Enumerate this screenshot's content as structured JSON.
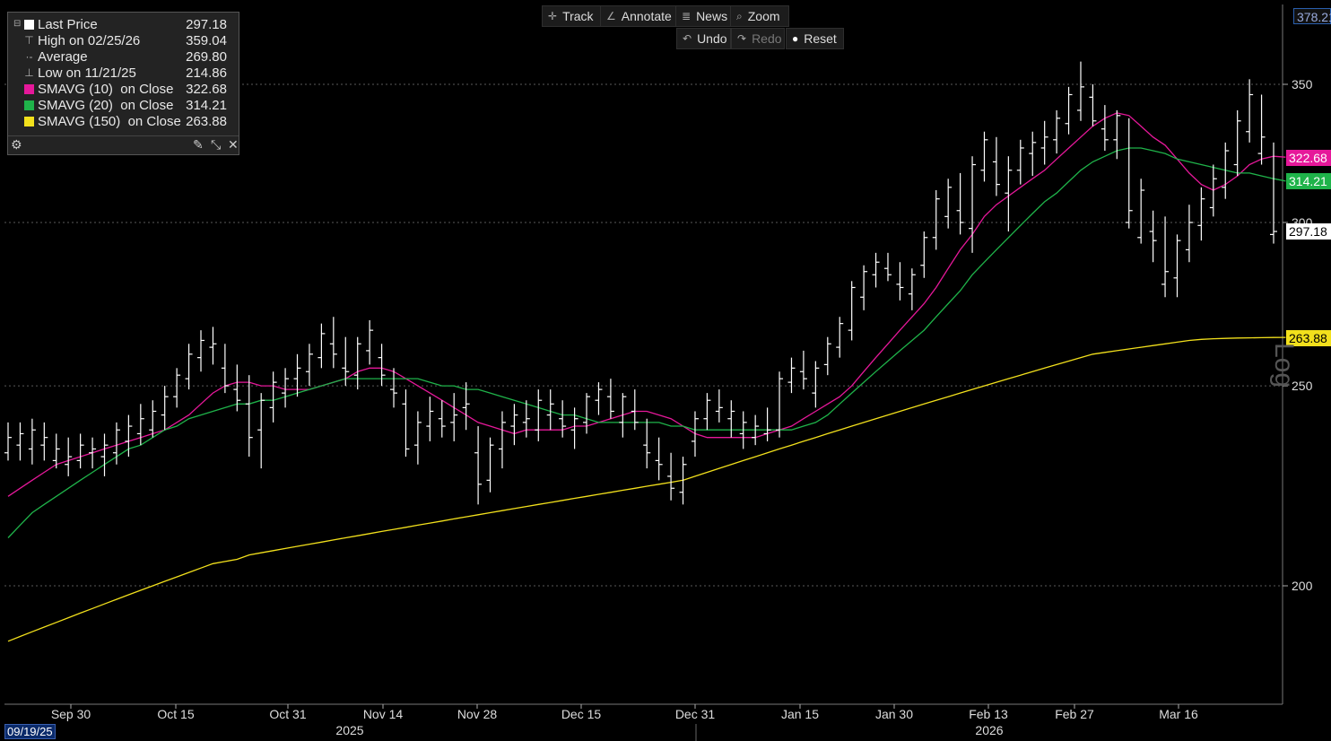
{
  "legend": {
    "rows": [
      {
        "label": "Last Price",
        "value": "297.18",
        "color": "#ffffff",
        "glyph": ""
      },
      {
        "label": "High on 02/25/26",
        "value": "359.04",
        "color": "",
        "glyph": "⊤"
      },
      {
        "label": "Average",
        "value": "269.80",
        "color": "",
        "glyph": "·-"
      },
      {
        "label": "Low on 11/21/25",
        "value": "214.86",
        "color": "",
        "glyph": "⊥"
      },
      {
        "label": "SMAVG (10)  on Close",
        "value": "322.68",
        "color": "#e6189a",
        "glyph": ""
      },
      {
        "label": "SMAVG (20)  on Close",
        "value": "314.21",
        "color": "#1fb34a",
        "glyph": ""
      },
      {
        "label": "SMAVG (150)  on Close",
        "value": "263.88",
        "color": "#f2e01c",
        "glyph": ""
      }
    ]
  },
  "toolbar": {
    "track": "Track",
    "annotate": "Annotate",
    "news": "News",
    "zoom": "Zoom",
    "undo": "Undo",
    "redo": "Redo",
    "reset": "Reset"
  },
  "axis_tags": {
    "top": "378.21",
    "sma10": "322.68",
    "sma20": "314.21",
    "last": "297.18",
    "sma150": "263.88"
  },
  "start_date": "09/19/25",
  "watermark": "Log",
  "chart_data": {
    "type": "line",
    "yscale": "log",
    "ylim": [
      180,
      380
    ],
    "yticks": [
      200,
      250,
      300,
      350
    ],
    "xlabels": [
      "Sep 30",
      "Oct 15",
      "Oct 31",
      "Nov 14",
      "Nov 28",
      "Dec 15",
      "Dec 31",
      "Jan 15",
      "Jan 30",
      "Feb 13",
      "Feb 27",
      "Mar 16"
    ],
    "year_labels": [
      "2025",
      "2026"
    ],
    "price_bars": [
      [
        232,
        240,
        230,
        236
      ],
      [
        234,
        240,
        230,
        237
      ],
      [
        233,
        241,
        229,
        238
      ],
      [
        234,
        240,
        230,
        236
      ],
      [
        230,
        237,
        228,
        233
      ],
      [
        229,
        236,
        226,
        231
      ],
      [
        230,
        237,
        228,
        234
      ],
      [
        232,
        236,
        228,
        233
      ],
      [
        231,
        237,
        226,
        234
      ],
      [
        232,
        240,
        229,
        238
      ],
      [
        235,
        242,
        231,
        239
      ],
      [
        237,
        245,
        234,
        241
      ],
      [
        238,
        246,
        236,
        243
      ],
      [
        242,
        250,
        238,
        247
      ],
      [
        247,
        255,
        244,
        253
      ],
      [
        252,
        262,
        249,
        259
      ],
      [
        258,
        266,
        254,
        263
      ],
      [
        261,
        267,
        256,
        262
      ],
      [
        255,
        262,
        248,
        250
      ],
      [
        249,
        256,
        243,
        246
      ],
      [
        245,
        253,
        231,
        236
      ],
      [
        238,
        248,
        228,
        246
      ],
      [
        244,
        254,
        240,
        251
      ],
      [
        248,
        255,
        244,
        252
      ],
      [
        252,
        259,
        247,
        255
      ],
      [
        254,
        262,
        250,
        259
      ],
      [
        258,
        268,
        255,
        265
      ],
      [
        262,
        270,
        255,
        259
      ],
      [
        255,
        264,
        250,
        254
      ],
      [
        253,
        264,
        249,
        262
      ],
      [
        260,
        269,
        256,
        266
      ],
      [
        258,
        262,
        250,
        253
      ],
      [
        249,
        255,
        244,
        248
      ],
      [
        245,
        249,
        231,
        233
      ],
      [
        234,
        243,
        229,
        240
      ],
      [
        239,
        247,
        235,
        243
      ],
      [
        241,
        246,
        236,
        239
      ],
      [
        240,
        248,
        235,
        242
      ],
      [
        244,
        251,
        238,
        245
      ],
      [
        232,
        239,
        219,
        224
      ],
      [
        225,
        236,
        222,
        234
      ],
      [
        233,
        243,
        228,
        240
      ],
      [
        239,
        245,
        234,
        242
      ],
      [
        240,
        246,
        236,
        241
      ],
      [
        238,
        249,
        235,
        246
      ],
      [
        242,
        249,
        238,
        245
      ],
      [
        241,
        246,
        236,
        239
      ],
      [
        238,
        244,
        233,
        241
      ],
      [
        240,
        248,
        237,
        247
      ],
      [
        246,
        251,
        242,
        249
      ],
      [
        247,
        252,
        241,
        243
      ],
      [
        240,
        248,
        236,
        247
      ],
      [
        243,
        249,
        238,
        240
      ],
      [
        234,
        241,
        228,
        232
      ],
      [
        230,
        236,
        225,
        229
      ],
      [
        226,
        232,
        220,
        223
      ],
      [
        222,
        231,
        219,
        229
      ],
      [
        235,
        243,
        231,
        241
      ],
      [
        241,
        248,
        238,
        246
      ],
      [
        243,
        249,
        240,
        244
      ],
      [
        241,
        246,
        236,
        243
      ],
      [
        237,
        243,
        233,
        240
      ],
      [
        236,
        242,
        234,
        239
      ],
      [
        237,
        244,
        235,
        238
      ],
      [
        238,
        254,
        236,
        252
      ],
      [
        251,
        258,
        248,
        255
      ],
      [
        254,
        260,
        249,
        252
      ],
      [
        248,
        257,
        244,
        255
      ],
      [
        256,
        264,
        253,
        262
      ],
      [
        261,
        270,
        258,
        268
      ],
      [
        266,
        281,
        263,
        279
      ],
      [
        276,
        286,
        272,
        284
      ],
      [
        283,
        290,
        279,
        287
      ],
      [
        285,
        290,
        281,
        283
      ],
      [
        280,
        287,
        275,
        279
      ],
      [
        277,
        285,
        272,
        283
      ],
      [
        286,
        297,
        282,
        295
      ],
      [
        295,
        311,
        291,
        308
      ],
      [
        302,
        315,
        298,
        312
      ],
      [
        304,
        317,
        296,
        300
      ],
      [
        298,
        323,
        290,
        320
      ],
      [
        318,
        332,
        314,
        329
      ],
      [
        321,
        330,
        309,
        313
      ],
      [
        310,
        323,
        297,
        318
      ],
      [
        318,
        329,
        313,
        326
      ],
      [
        324,
        332,
        316,
        328
      ],
      [
        326,
        336,
        320,
        330
      ],
      [
        329,
        340,
        324,
        337
      ],
      [
        335,
        349,
        331,
        346
      ],
      [
        340,
        359,
        336,
        349
      ],
      [
        345,
        350,
        334,
        336
      ],
      [
        333,
        342,
        325,
        329
      ],
      [
        329,
        340,
        322,
        338
      ],
      [
        300,
        337,
        298,
        304
      ],
      [
        295,
        315,
        293,
        311
      ],
      [
        297,
        304,
        287,
        294
      ],
      [
        280,
        302,
        276,
        284
      ],
      [
        282,
        296,
        276,
        294
      ],
      [
        291,
        306,
        287,
        300
      ],
      [
        299,
        312,
        294,
        308
      ],
      [
        305,
        320,
        302,
        315
      ],
      [
        312,
        328,
        308,
        325
      ],
      [
        320,
        340,
        316,
        336
      ],
      [
        332,
        352,
        328,
        346
      ],
      [
        324,
        346,
        320,
        330
      ],
      [
        296,
        328,
        293,
        297
      ]
    ],
    "series": [
      {
        "name": "SMAVG (10)  on Close",
        "color": "#e6189a",
        "values": [
          221,
          223,
          225,
          227,
          229,
          230,
          231,
          232,
          233,
          234,
          235,
          236,
          237,
          238,
          240,
          242,
          245,
          248,
          250,
          251,
          251,
          250,
          250,
          249,
          249,
          249,
          250,
          251,
          252,
          254,
          255,
          255,
          254,
          252,
          250,
          248,
          246,
          244,
          242,
          240,
          239,
          238,
          237,
          238,
          238,
          238,
          238,
          239,
          239,
          240,
          241,
          242,
          243,
          243,
          242,
          241,
          239,
          237,
          236,
          236,
          236,
          236,
          236,
          237,
          238,
          239,
          241,
          243,
          245,
          247,
          250,
          254,
          258,
          262,
          266,
          270,
          274,
          279,
          285,
          291,
          296,
          302,
          306,
          309,
          312,
          315,
          318,
          322,
          326,
          330,
          334,
          337,
          339,
          338,
          334,
          330,
          327,
          322,
          317,
          313,
          311,
          313,
          316,
          320,
          322,
          323,
          322.68
        ]
      },
      {
        "name": "SMAVG (20)  on Close",
        "color": "#1fb34a",
        "values": [
          211,
          214,
          217,
          219,
          221,
          223,
          225,
          227,
          229,
          231,
          233,
          234,
          236,
          238,
          239,
          241,
          242,
          243,
          244,
          245,
          245,
          246,
          246,
          247,
          248,
          249,
          250,
          251,
          252,
          252,
          252,
          252,
          252,
          252,
          252,
          251,
          250,
          250,
          249,
          249,
          248,
          247,
          246,
          245,
          244,
          243,
          242,
          242,
          241,
          240,
          240,
          240,
          240,
          240,
          240,
          239,
          239,
          238,
          238,
          238,
          238,
          238,
          238,
          238,
          238,
          238,
          239,
          240,
          242,
          245,
          248,
          251,
          254,
          257,
          260,
          263,
          266,
          270,
          274,
          278,
          283,
          287,
          291,
          295,
          299,
          303,
          307,
          310,
          314,
          318,
          321,
          323,
          325,
          326,
          326,
          325,
          324,
          322,
          321,
          320,
          319,
          318,
          317,
          317,
          316,
          315,
          314.21
        ]
      },
      {
        "name": "SMAVG (150)  on Close",
        "color": "#f2e01c",
        "values": [
          188,
          189,
          190,
          191,
          192,
          193,
          194,
          195,
          196,
          197,
          198,
          199,
          200,
          201,
          202,
          203,
          204,
          205,
          205.5,
          206,
          207,
          207.5,
          208,
          208.5,
          209,
          209.5,
          210,
          210.5,
          211,
          211.5,
          212,
          212.5,
          213,
          213.5,
          214,
          214.5,
          215,
          215.5,
          216,
          216.5,
          217,
          217.5,
          218,
          218.5,
          219,
          219.5,
          220,
          220.5,
          221,
          221.5,
          222,
          222.5,
          223,
          223.5,
          224,
          224.5,
          225,
          226,
          227,
          228,
          229,
          230,
          231,
          232,
          233,
          234,
          235,
          236,
          237,
          238,
          239,
          240,
          241,
          242,
          243,
          244,
          245,
          246,
          247,
          248,
          249,
          250,
          251,
          252,
          253,
          254,
          255,
          256,
          257,
          258,
          259,
          259.5,
          260,
          260.5,
          261,
          261.5,
          262,
          262.5,
          263,
          263.3,
          263.5,
          263.6,
          263.7,
          263.75,
          263.8,
          263.85,
          263.88
        ]
      }
    ],
    "grid": true
  }
}
